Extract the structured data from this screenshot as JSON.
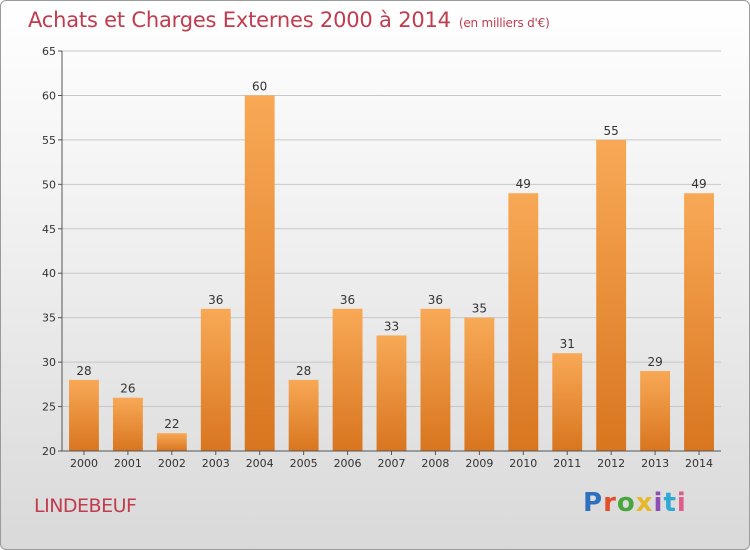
{
  "header": {
    "title": "Achats et Charges Externes 2000 à 2014",
    "unit": "(en milliers d'€)"
  },
  "footer": {
    "commune": "LINDEBEUF",
    "logo_letters": [
      "P",
      "r",
      "o",
      "x",
      "i",
      "t",
      "i"
    ]
  },
  "colors": {
    "bar_top": "#f8a956",
    "bar_bottom": "#d9751f",
    "title": "#c03c4e"
  },
  "chart_data": {
    "type": "bar",
    "title": "Achats et Charges Externes 2000 à 2014",
    "subtitle": "(en milliers d'€)",
    "categories": [
      "2000",
      "2001",
      "2002",
      "2003",
      "2004",
      "2005",
      "2006",
      "2007",
      "2008",
      "2009",
      "2010",
      "2011",
      "2012",
      "2013",
      "2014"
    ],
    "values": [
      28,
      26,
      22,
      36,
      60,
      28,
      36,
      33,
      36,
      35,
      49,
      31,
      55,
      29,
      49
    ],
    "ylim": [
      20,
      65
    ],
    "yticks": [
      20,
      25,
      30,
      35,
      40,
      45,
      50,
      55,
      60,
      65
    ],
    "grid": true,
    "xlabel": "",
    "ylabel": ""
  }
}
